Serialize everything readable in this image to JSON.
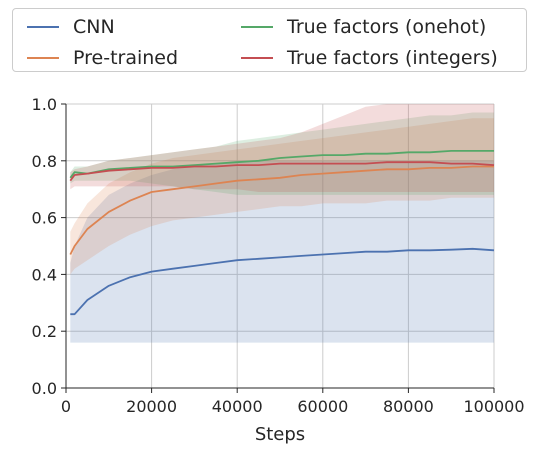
{
  "chart_data": {
    "type": "line",
    "title": "",
    "xlabel": "Steps",
    "ylabel": "",
    "xlim": [
      0,
      100000
    ],
    "ylim": [
      0.0,
      1.0
    ],
    "xticks": [
      0,
      20000,
      40000,
      60000,
      80000,
      100000
    ],
    "yticks": [
      0.0,
      0.2,
      0.4,
      0.6,
      0.8,
      1.0
    ],
    "xtick_labels": [
      "0",
      "20000",
      "40000",
      "60000",
      "80000",
      "100000"
    ],
    "ytick_labels": [
      "0.0",
      "0.2",
      "0.4",
      "0.6",
      "0.8",
      "1.0"
    ],
    "grid": true,
    "legend_position": "top",
    "series": [
      {
        "name": "CNN",
        "color": "#4c72b0",
        "x": [
          1000,
          2000,
          5000,
          10000,
          15000,
          20000,
          25000,
          30000,
          35000,
          40000,
          45000,
          50000,
          55000,
          60000,
          65000,
          70000,
          75000,
          80000,
          85000,
          90000,
          95000,
          100000
        ],
        "y": [
          0.26,
          0.26,
          0.31,
          0.36,
          0.39,
          0.41,
          0.42,
          0.43,
          0.44,
          0.45,
          0.455,
          0.46,
          0.465,
          0.47,
          0.475,
          0.48,
          0.48,
          0.485,
          0.485,
          0.487,
          0.49,
          0.485
        ],
        "band_low": [
          0.16,
          0.16,
          0.16,
          0.16,
          0.16,
          0.16,
          0.16,
          0.16,
          0.16,
          0.16,
          0.16,
          0.16,
          0.16,
          0.16,
          0.16,
          0.16,
          0.16,
          0.16,
          0.16,
          0.16,
          0.16,
          0.16
        ],
        "band_high": [
          0.44,
          0.5,
          0.6,
          0.68,
          0.72,
          0.75,
          0.77,
          0.78,
          0.79,
          0.8,
          0.8,
          0.8,
          0.8,
          0.8,
          0.8,
          0.8,
          0.8,
          0.8,
          0.8,
          0.8,
          0.8,
          0.8
        ]
      },
      {
        "name": "Pre-trained",
        "color": "#dd8452",
        "x": [
          1000,
          2000,
          5000,
          10000,
          15000,
          20000,
          25000,
          30000,
          35000,
          40000,
          45000,
          50000,
          55000,
          60000,
          65000,
          70000,
          75000,
          80000,
          85000,
          90000,
          95000,
          100000
        ],
        "y": [
          0.47,
          0.5,
          0.56,
          0.62,
          0.66,
          0.69,
          0.7,
          0.71,
          0.72,
          0.73,
          0.735,
          0.74,
          0.75,
          0.755,
          0.76,
          0.765,
          0.77,
          0.77,
          0.775,
          0.775,
          0.78,
          0.78
        ],
        "band_low": [
          0.4,
          0.42,
          0.45,
          0.5,
          0.54,
          0.57,
          0.59,
          0.6,
          0.61,
          0.62,
          0.63,
          0.64,
          0.64,
          0.65,
          0.65,
          0.65,
          0.66,
          0.66,
          0.66,
          0.67,
          0.67,
          0.67
        ],
        "band_high": [
          0.55,
          0.58,
          0.65,
          0.72,
          0.76,
          0.79,
          0.81,
          0.82,
          0.83,
          0.84,
          0.85,
          0.86,
          0.87,
          0.88,
          0.89,
          0.9,
          0.91,
          0.92,
          0.93,
          0.94,
          0.95,
          0.95
        ]
      },
      {
        "name": "True factors (onehot)",
        "color": "#55a868",
        "x": [
          1000,
          2000,
          5000,
          10000,
          15000,
          20000,
          25000,
          30000,
          35000,
          40000,
          45000,
          50000,
          55000,
          60000,
          65000,
          70000,
          75000,
          80000,
          85000,
          90000,
          95000,
          100000
        ],
        "y": [
          0.74,
          0.76,
          0.755,
          0.77,
          0.775,
          0.78,
          0.78,
          0.785,
          0.79,
          0.795,
          0.8,
          0.81,
          0.815,
          0.82,
          0.82,
          0.825,
          0.825,
          0.83,
          0.83,
          0.835,
          0.835,
          0.835
        ],
        "band_low": [
          0.72,
          0.73,
          0.73,
          0.73,
          0.73,
          0.72,
          0.71,
          0.7,
          0.69,
          0.68,
          0.68,
          0.68,
          0.68,
          0.68,
          0.68,
          0.68,
          0.68,
          0.68,
          0.68,
          0.68,
          0.68,
          0.68
        ],
        "band_high": [
          0.76,
          0.78,
          0.78,
          0.8,
          0.81,
          0.82,
          0.83,
          0.84,
          0.85,
          0.87,
          0.88,
          0.89,
          0.9,
          0.91,
          0.92,
          0.93,
          0.94,
          0.95,
          0.96,
          0.96,
          0.97,
          0.97
        ]
      },
      {
        "name": "True factors (integers)",
        "color": "#c44e52",
        "x": [
          1000,
          2000,
          5000,
          10000,
          15000,
          20000,
          25000,
          30000,
          35000,
          40000,
          45000,
          50000,
          55000,
          60000,
          65000,
          70000,
          75000,
          80000,
          85000,
          90000,
          95000,
          100000
        ],
        "y": [
          0.73,
          0.75,
          0.755,
          0.765,
          0.77,
          0.775,
          0.775,
          0.78,
          0.78,
          0.785,
          0.785,
          0.79,
          0.79,
          0.79,
          0.79,
          0.79,
          0.795,
          0.795,
          0.795,
          0.79,
          0.79,
          0.785
        ],
        "band_low": [
          0.7,
          0.71,
          0.71,
          0.71,
          0.71,
          0.71,
          0.71,
          0.7,
          0.7,
          0.7,
          0.69,
          0.69,
          0.69,
          0.69,
          0.69,
          0.69,
          0.69,
          0.69,
          0.69,
          0.69,
          0.69,
          0.69
        ],
        "band_high": [
          0.76,
          0.77,
          0.78,
          0.8,
          0.81,
          0.82,
          0.83,
          0.84,
          0.85,
          0.86,
          0.87,
          0.88,
          0.9,
          0.93,
          0.96,
          0.99,
          1.0,
          1.0,
          1.0,
          1.0,
          1.0,
          1.0
        ]
      }
    ]
  }
}
